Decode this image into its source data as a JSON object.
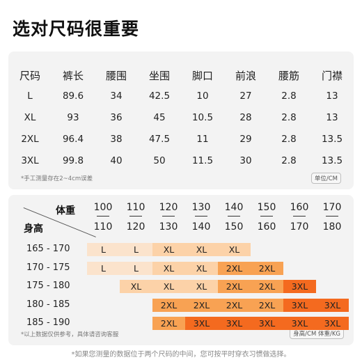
{
  "title": "选对尺码很重要",
  "size_table": {
    "headers": [
      "尺码",
      "裤长",
      "腰围",
      "坐围",
      "脚口",
      "前浪",
      "腰筋",
      "门襟"
    ],
    "rows": [
      [
        "L",
        "89.6",
        "34",
        "42.5",
        "10",
        "27",
        "2.8",
        "13"
      ],
      [
        "XL",
        "93",
        "36",
        "45",
        "10.5",
        "28",
        "2.8",
        "13"
      ],
      [
        "2XL",
        "96.4",
        "38",
        "47.5",
        "11",
        "29",
        "2.8",
        "13.5"
      ],
      [
        "3XL",
        "99.8",
        "40",
        "50",
        "11.5",
        "30",
        "2.8",
        "13.5"
      ]
    ],
    "note": "*手工测量存在2~4cm误差",
    "unit": "单位/CM"
  },
  "matrix": {
    "weight_label": "体重",
    "height_label": "身高",
    "weights": [
      {
        "top": "100",
        "bottom": "110"
      },
      {
        "top": "110",
        "bottom": "120"
      },
      {
        "top": "120",
        "bottom": "130"
      },
      {
        "top": "130",
        "bottom": "140"
      },
      {
        "top": "140",
        "bottom": "150"
      },
      {
        "top": "150",
        "bottom": "160"
      },
      {
        "top": "160",
        "bottom": "170"
      },
      {
        "top": "170",
        "bottom": "180"
      }
    ],
    "heights": [
      "165 - 170",
      "170 - 175",
      "175 - 180",
      "180 - 185",
      "185 - 190"
    ],
    "grid": [
      [
        "L",
        "L",
        "XL",
        "XL",
        "XL",
        "",
        "",
        ""
      ],
      [
        "L",
        "L",
        "XL",
        "XL",
        "2XL",
        "2XL",
        "",
        ""
      ],
      [
        "",
        "XL",
        "XL",
        "XL",
        "2XL",
        "2XL",
        "3XL",
        ""
      ],
      [
        "",
        "",
        "2XL",
        "2XL",
        "2XL",
        "2XL",
        "3XL",
        "3XL"
      ],
      [
        "",
        "",
        "2XL",
        "3XL",
        "3XL",
        "3XL",
        "3XL",
        "3XL"
      ]
    ],
    "size_colors": {
      "L": "#fbe3cc",
      "XL": "#fcd2a8",
      "2XL": "#f8a253",
      "3XL": "#f46a1f"
    },
    "note": "*以上数据仅供参考，具体请咨询客服",
    "unit": "身高/CM 体重/KG"
  },
  "footer": "*如果您测量的数据位于两个尺码的中间，您可按平时穿衣习惯做选择。"
}
